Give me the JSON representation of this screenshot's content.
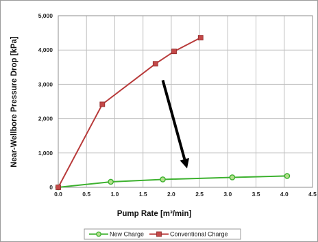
{
  "chart_data": {
    "type": "line",
    "title": "",
    "xlabel": "Pump Rate [m³/min]",
    "ylabel": "Near-Wellbore Pressure Drop [kPa]",
    "xlim": [
      0,
      4.5
    ],
    "ylim": [
      0,
      5000
    ],
    "x_ticks": [
      "0.0",
      "0.5",
      "1.0",
      "1.5",
      "2.0",
      "2.5",
      "3.0",
      "3.5",
      "4.0",
      "4.5"
    ],
    "y_ticks": [
      "0",
      "1,000",
      "2,000",
      "3,000",
      "4,000",
      "5,000"
    ],
    "grid": true,
    "legend_position": "bottom",
    "series": [
      {
        "name": "New Charge",
        "color": "#3cb12e",
        "marker": "circle",
        "x": [
          0.0,
          0.93,
          1.85,
          3.08,
          4.05
        ],
        "y": [
          0,
          160,
          230,
          290,
          330
        ]
      },
      {
        "name": "Conventional Charge",
        "color": "#b83a3a",
        "marker": "square",
        "x": [
          0.0,
          0.78,
          1.72,
          2.05,
          2.52
        ],
        "y": [
          0,
          2420,
          3600,
          3960,
          4360
        ]
      }
    ],
    "annotations": [
      {
        "type": "arrow",
        "from": [
          1.85,
          3120
        ],
        "to": [
          2.28,
          550
        ],
        "color": "#000000"
      }
    ]
  }
}
